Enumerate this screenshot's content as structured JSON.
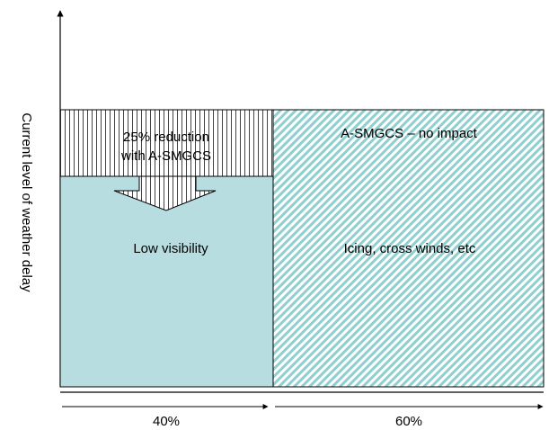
{
  "y_axis_label": "Current level of weather delay",
  "regions": {
    "reduction": {
      "line1": "25% reduction",
      "line2": "with A-SMGCS"
    },
    "low_visibility": {
      "label": "Low visibility",
      "share": "40%",
      "fill": "#b8dde0"
    },
    "other": {
      "label": "Icing, cross winds, etc",
      "note": "A-SMGCS – no impact",
      "share": "60%",
      "hatch": "#8fcfd0"
    }
  },
  "colors": {
    "line": "#000000",
    "teal": "#b8dde0",
    "hatch": "#8fcfd0"
  }
}
